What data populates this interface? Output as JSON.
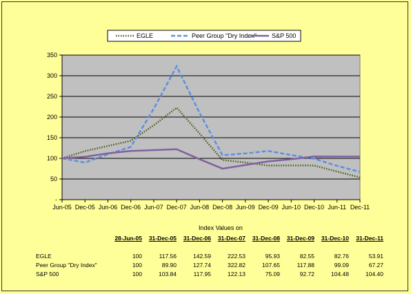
{
  "chart_data": {
    "type": "line",
    "categories": [
      "Jun-05",
      "Dec-05",
      "Jun-06",
      "Dec-06",
      "Jun-07",
      "Dec-07",
      "Jun-08",
      "Dec-08",
      "Jun-09",
      "Dec-09",
      "Jun-10",
      "Dec-10",
      "Jun-11",
      "Dec-11"
    ],
    "ylim": [
      0,
      350
    ],
    "yticks": [
      "-",
      "50",
      "100",
      "150",
      "200",
      "250",
      "300",
      "350"
    ],
    "grid": true,
    "legend_position": "top",
    "series": [
      {
        "name": "EGLE",
        "color": "#4b5a1e",
        "style": "dotted",
        "values": [
          100,
          117.56,
          130,
          142.59,
          180,
          222.53,
          160,
          95.93,
          90,
          82.55,
          83,
          82.76,
          68,
          53.91
        ]
      },
      {
        "name": "Peer Group \"Dry Index\"",
        "color": "#5b8fe0",
        "style": "dashed",
        "values": [
          100,
          89.9,
          110,
          127.74,
          220,
          322.82,
          210,
          107.65,
          112,
          117.88,
          108,
          99.09,
          82,
          67.27
        ]
      },
      {
        "name": "S&P 500",
        "color": "#8060a0",
        "style": "solid",
        "values": [
          100,
          103.84,
          112,
          117.95,
          120,
          122.13,
          98,
          75.09,
          84,
          92.72,
          98,
          104.48,
          104.4,
          104.4
        ]
      }
    ]
  },
  "table": {
    "title": "Index Values on",
    "headers": [
      "28-Jun-05",
      "31-Dec-05",
      "31-Dec-06",
      "31-Dec-07",
      "31-Dec-08",
      "31-Dec-09",
      "31-Dec-10",
      "31-Dec-11"
    ],
    "rows": [
      {
        "label": "EGLE",
        "values": [
          "100",
          "117.56",
          "142.59",
          "222.53",
          "95.93",
          "82.55",
          "82.76",
          "53.91"
        ]
      },
      {
        "label": "Peer Group \"Dry Index\"",
        "values": [
          "100",
          "89.90",
          "127.74",
          "322.82",
          "107.65",
          "117.88",
          "99.09",
          "67.27"
        ]
      },
      {
        "label": "S&P 500",
        "values": [
          "100",
          "103.84",
          "117.95",
          "122.13",
          "75.09",
          "92.72",
          "104.48",
          "104.40"
        ]
      }
    ]
  }
}
